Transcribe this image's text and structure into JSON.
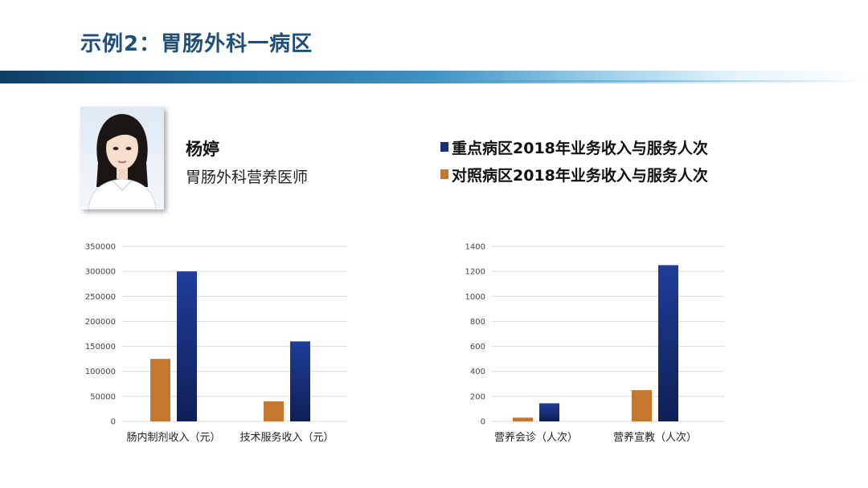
{
  "slide": {
    "title": "示例2：胃肠外科一病区"
  },
  "person": {
    "name": "杨婷",
    "role": "胃肠外科营养医师",
    "photo_icon": "portrait-photo"
  },
  "legend": {
    "items": [
      {
        "label": "重点病区2018年业务收入与服务人次",
        "color": "#1a2f7a"
      },
      {
        "label": "对照病区2018年业务收入与服务人次",
        "color": "#c4782e"
      }
    ]
  },
  "colors": {
    "key_ward": "#1a2f7a",
    "control_ward": "#c4782e",
    "grid": "#d9d9d9"
  },
  "chart_data": [
    {
      "type": "bar",
      "categories": [
        "肠内制剂收入（元）",
        "技术服务收入（元）"
      ],
      "series": [
        {
          "name": "对照病区2018年业务收入与服务人次",
          "values": [
            125000,
            40000
          ]
        },
        {
          "name": "重点病区2018年业务收入与服务人次",
          "values": [
            300000,
            160000
          ]
        }
      ],
      "yticks": [
        "0",
        "50000",
        "100000",
        "150000",
        "200000",
        "250000",
        "300000",
        "350000"
      ],
      "ylim": [
        0,
        350000
      ],
      "grid": true,
      "legend": "top"
    },
    {
      "type": "bar",
      "categories": [
        "营养会诊（人次）",
        "营养宣教（人次）"
      ],
      "series": [
        {
          "name": "对照病区2018年业务收入与服务人次",
          "values": [
            30,
            250
          ]
        },
        {
          "name": "重点病区2018年业务收入与服务人次",
          "values": [
            145,
            1250
          ]
        }
      ],
      "yticks": [
        "0",
        "200",
        "400",
        "600",
        "800",
        "1000",
        "1200",
        "1400"
      ],
      "ylim": [
        0,
        1400
      ],
      "grid": true,
      "legend": "top"
    }
  ]
}
